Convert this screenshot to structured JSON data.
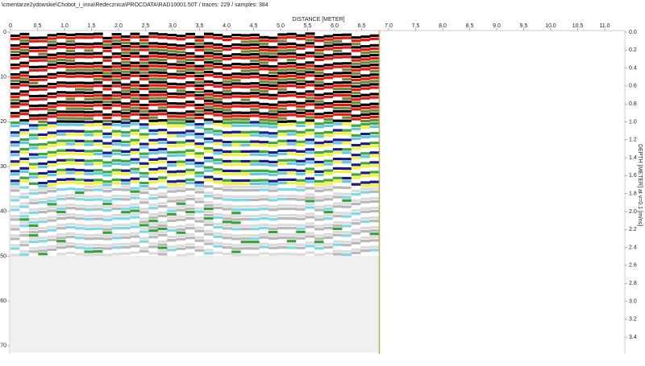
{
  "header": {
    "title": "\\cmentarze2ydowskie\\Chobot_i_inna\\Redecznica\\PROCDATA\\RAD10001.50T / traces: 229 / samples: 384"
  },
  "top_axis": {
    "label": "DISTANCE [METER]",
    "ticks": [
      "0",
      "0.5",
      "1.0",
      "1.5",
      "2.0",
      "2.5",
      "3.0",
      "3.5",
      "4.0",
      "4.5",
      "5.0",
      "5.5",
      "6.0",
      "6.5",
      "7.0",
      "7.5",
      "8.0",
      "8.5",
      "9.0",
      "9.5",
      "10.0",
      "10.5",
      "11.0"
    ]
  },
  "left_axis": {
    "ticks": [
      "0",
      "10",
      "20",
      "30",
      "40",
      "50",
      "60",
      "70"
    ]
  },
  "right_axis": {
    "label": "DEPTH [METER] at v=0.1 [m/ns]",
    "ticks": [
      "0.0",
      "0.2",
      "0.4",
      "0.6",
      "0.8",
      "1.0",
      "1.2",
      "1.4",
      "1.6",
      "1.8",
      "2.0",
      "2.2",
      "2.4",
      "2.6",
      "2.8",
      "3.0",
      "3.2",
      "3.4"
    ]
  }
}
